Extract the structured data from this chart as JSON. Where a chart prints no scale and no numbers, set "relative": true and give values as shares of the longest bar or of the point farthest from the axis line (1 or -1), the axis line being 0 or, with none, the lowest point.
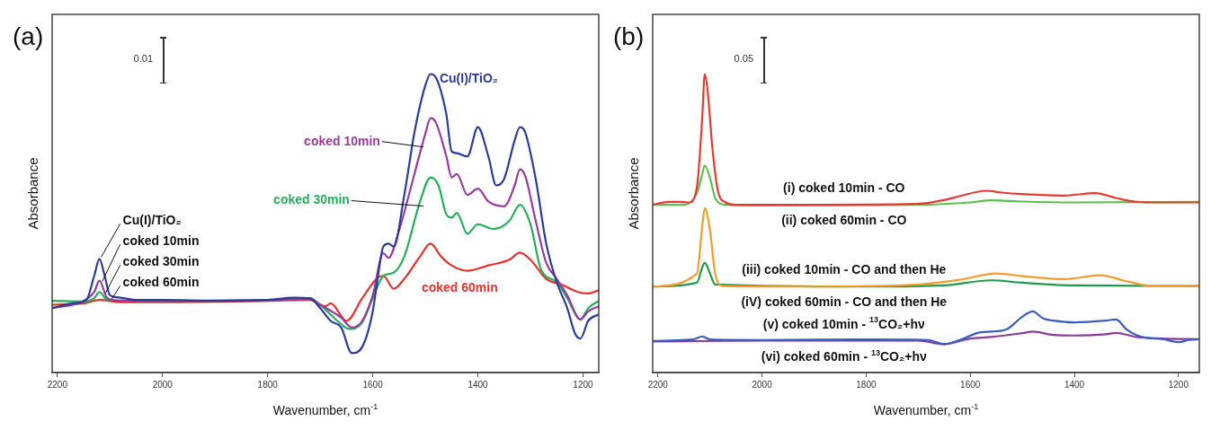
{
  "chart_data": [
    {
      "type": "line",
      "title": "(a)",
      "xlabel": "Wavenumber, cm$^{-1}$",
      "ylabel": "Absorbance",
      "relative": true,
      "xlim": [
        2210,
        1170
      ],
      "xticks": [
        2200,
        2000,
        1800,
        1600,
        1400,
        1200
      ],
      "grid": false,
      "legend": false,
      "marker": "none",
      "line_style": "solid",
      "annotations": [
        "0.01",
        {
          "text": "Cu(I)/TiO₂",
          "x": 2120,
          "y": 0.381
        },
        {
          "text": "coked 10min",
          "x": 2118,
          "y": 0.3
        },
        {
          "text": "coked 30min",
          "x": 2112,
          "y": 0.26
        },
        {
          "text": "coked 60min",
          "x": 2100,
          "y": 0.24
        }
      ],
      "series": [
        {
          "name": "Cu(I)/TiO₂",
          "color": "#2b3a9e",
          "x": [
            2210,
            2170,
            2145,
            2130,
            2120,
            2110,
            2100,
            2080,
            2050,
            2000,
            1900,
            1800,
            1750,
            1720,
            1700,
            1680,
            1660,
            1640,
            1620,
            1600,
            1590,
            1580,
            1570,
            1560,
            1540,
            1520,
            1500,
            1490,
            1480,
            1460,
            1450,
            1440,
            1420,
            1400,
            1380,
            1365,
            1350,
            1330,
            1320,
            1310,
            1290,
            1270,
            1250,
            1230,
            1215,
            1205,
            1190,
            1170
          ],
          "values": [
            0.216,
            0.232,
            0.243,
            0.324,
            0.381,
            0.324,
            0.259,
            0.251,
            0.243,
            0.243,
            0.24,
            0.243,
            0.251,
            0.249,
            0.216,
            0.173,
            0.151,
            0.065,
            0.086,
            0.205,
            0.324,
            0.422,
            0.432,
            0.422,
            0.595,
            0.811,
            0.962,
            1,
            0.989,
            0.865,
            0.741,
            0.735,
            0.724,
            0.822,
            0.724,
            0.627,
            0.649,
            0.778,
            0.822,
            0.805,
            0.649,
            0.432,
            0.303,
            0.216,
            0.13,
            0.114,
            0.173,
            0.195
          ]
        },
        {
          "name": "coked 10min",
          "color": "#9b3a9e",
          "x": [
            2210,
            2150,
            2130,
            2120,
            2105,
            2080,
            2000,
            1800,
            1720,
            1700,
            1660,
            1640,
            1620,
            1600,
            1580,
            1570,
            1550,
            1520,
            1500,
            1490,
            1480,
            1460,
            1450,
            1440,
            1420,
            1400,
            1380,
            1350,
            1330,
            1320,
            1310,
            1290,
            1270,
            1250,
            1230,
            1205,
            1190,
            1170
          ],
          "values": [
            0.216,
            0.24,
            0.27,
            0.308,
            0.249,
            0.24,
            0.24,
            0.243,
            0.246,
            0.227,
            0.184,
            0.151,
            0.173,
            0.259,
            0.4,
            0.384,
            0.476,
            0.67,
            0.8,
            0.852,
            0.838,
            0.724,
            0.654,
            0.665,
            0.595,
            0.616,
            0.573,
            0.557,
            0.627,
            0.681,
            0.659,
            0.508,
            0.368,
            0.314,
            0.259,
            0.178,
            0.205,
            0.222
          ]
        },
        {
          "name": "coked 30min",
          "color": "#22b05a",
          "x": [
            2210,
            2150,
            2130,
            2120,
            2105,
            2000,
            1800,
            1720,
            1700,
            1660,
            1645,
            1620,
            1600,
            1580,
            1560,
            1540,
            1510,
            1490,
            1475,
            1460,
            1450,
            1440,
            1420,
            1400,
            1370,
            1340,
            1320,
            1300,
            1280,
            1250,
            1230,
            1205,
            1190,
            1170
          ],
          "values": [
            0.24,
            0.238,
            0.249,
            0.27,
            0.243,
            0.24,
            0.243,
            0.249,
            0.227,
            0.162,
            0.146,
            0.168,
            0.249,
            0.324,
            0.335,
            0.389,
            0.573,
            0.654,
            0.627,
            0.53,
            0.519,
            0.535,
            0.465,
            0.497,
            0.481,
            0.508,
            0.562,
            0.497,
            0.346,
            0.303,
            0.249,
            0.178,
            0.216,
            0.24
          ]
        },
        {
          "name": "coked 60min",
          "color": "#e8302a",
          "x": [
            2210,
            2150,
            2120,
            2080,
            2000,
            1800,
            1720,
            1690,
            1680,
            1650,
            1620,
            1590,
            1580,
            1560,
            1540,
            1510,
            1490,
            1470,
            1450,
            1420,
            1380,
            1340,
            1320,
            1300,
            1270,
            1240,
            1210,
            1190,
            1170
          ],
          "values": [
            0.227,
            0.232,
            0.243,
            0.236,
            0.236,
            0.24,
            0.243,
            0.222,
            0.232,
            0.173,
            0.249,
            0.319,
            0.324,
            0.281,
            0.314,
            0.389,
            0.432,
            0.389,
            0.359,
            0.341,
            0.359,
            0.378,
            0.402,
            0.378,
            0.314,
            0.294,
            0.27,
            0.265,
            0.276
          ]
        }
      ]
    },
    {
      "type": "line",
      "title": "(b)",
      "xlabel": "Wavenumber, cm$^{-1}$",
      "ylabel": "Absorbance",
      "relative": true,
      "xlim": [
        2210,
        1160
      ],
      "xticks": [
        2200,
        2000,
        1800,
        1600,
        1400,
        1200
      ],
      "grid": false,
      "legend": false,
      "marker": "none",
      "line_style": "solid",
      "annotations": [
        "0.05"
      ],
      "series": [
        {
          "name": "(i) coked 10min - CO",
          "color": "#e83a30",
          "x": [
            2210,
            2180,
            2160,
            2140,
            2125,
            2115,
            2110,
            2105,
            2095,
            2085,
            2070,
            2050,
            1900,
            1700,
            1650,
            1620,
            1570,
            1540,
            1500,
            1420,
            1360,
            1320,
            1290,
            1250,
            1160
          ],
          "values": [
            0.562,
            0.572,
            0.572,
            0.57,
            0.622,
            0.85,
            1,
            0.953,
            0.746,
            0.611,
            0.57,
            0.562,
            0.562,
            0.565,
            0.578,
            0.591,
            0.609,
            0.603,
            0.598,
            0.593,
            0.601,
            0.585,
            0.574,
            0.57,
            0.57
          ]
        },
        {
          "name": "(ii) coked 60min - CO",
          "color": "#5cc050",
          "x": [
            2210,
            2150,
            2125,
            2115,
            2110,
            2100,
            2090,
            2070,
            2000,
            1700,
            1600,
            1560,
            1500,
            1400,
            1160
          ],
          "values": [
            0.562,
            0.562,
            0.601,
            0.663,
            0.694,
            0.653,
            0.585,
            0.562,
            0.56,
            0.562,
            0.57,
            0.577,
            0.573,
            0.57,
            0.572
          ]
        },
        {
          "name": "(iii) coked 10min - CO and then He",
          "color": "#f39c2a",
          "x": [
            2210,
            2125,
            2115,
            2110,
            2100,
            2090,
            2075,
            1900,
            1700,
            1620,
            1550,
            1500,
            1420,
            1350,
            1300,
            1250,
            1160
          ],
          "values": [
            0.288,
            0.332,
            0.487,
            0.551,
            0.477,
            0.332,
            0.29,
            0.288,
            0.295,
            0.311,
            0.332,
            0.323,
            0.313,
            0.326,
            0.306,
            0.29,
            0.29
          ]
        },
        {
          "name": "(iV) coked 60min - CO and then He",
          "color": "#1e9a4a",
          "x": [
            2210,
            2125,
            2115,
            2110,
            2100,
            2090,
            1800,
            1650,
            1560,
            1500,
            1400,
            1160
          ],
          "values": [
            0.288,
            0.301,
            0.352,
            0.368,
            0.332,
            0.295,
            0.288,
            0.292,
            0.309,
            0.301,
            0.292,
            0.29
          ]
        },
        {
          "name": "(v) coked 10min - $^{13}$CO₂+hν",
          "color": "#3a5cc0",
          "x": [
            2210,
            2130,
            2115,
            2100,
            2000,
            1800,
            1680,
            1650,
            1620,
            1580,
            1560,
            1530,
            1500,
            1480,
            1460,
            1440,
            1400,
            1340,
            1320,
            1300,
            1270,
            1230,
            1200,
            1180,
            1160
          ],
          "values": [
            0.106,
            0.112,
            0.121,
            0.111,
            0.109,
            0.111,
            0.109,
            0.095,
            0.109,
            0.135,
            0.137,
            0.145,
            0.187,
            0.205,
            0.181,
            0.174,
            0.168,
            0.174,
            0.178,
            0.145,
            0.119,
            0.112,
            0.102,
            0.109,
            0.112
          ]
        },
        {
          "name": "(vi) coked 60min - $^{13}$CO₂+hν",
          "color": "#8a3a9a",
          "x": [
            2210,
            2000,
            1700,
            1650,
            1600,
            1560,
            1500,
            1480,
            1440,
            1400,
            1340,
            1320,
            1280,
            1230,
            1160
          ],
          "values": [
            0.104,
            0.107,
            0.107,
            0.095,
            0.114,
            0.119,
            0.132,
            0.137,
            0.126,
            0.124,
            0.128,
            0.133,
            0.119,
            0.114,
            0.112
          ]
        }
      ]
    }
  ]
}
